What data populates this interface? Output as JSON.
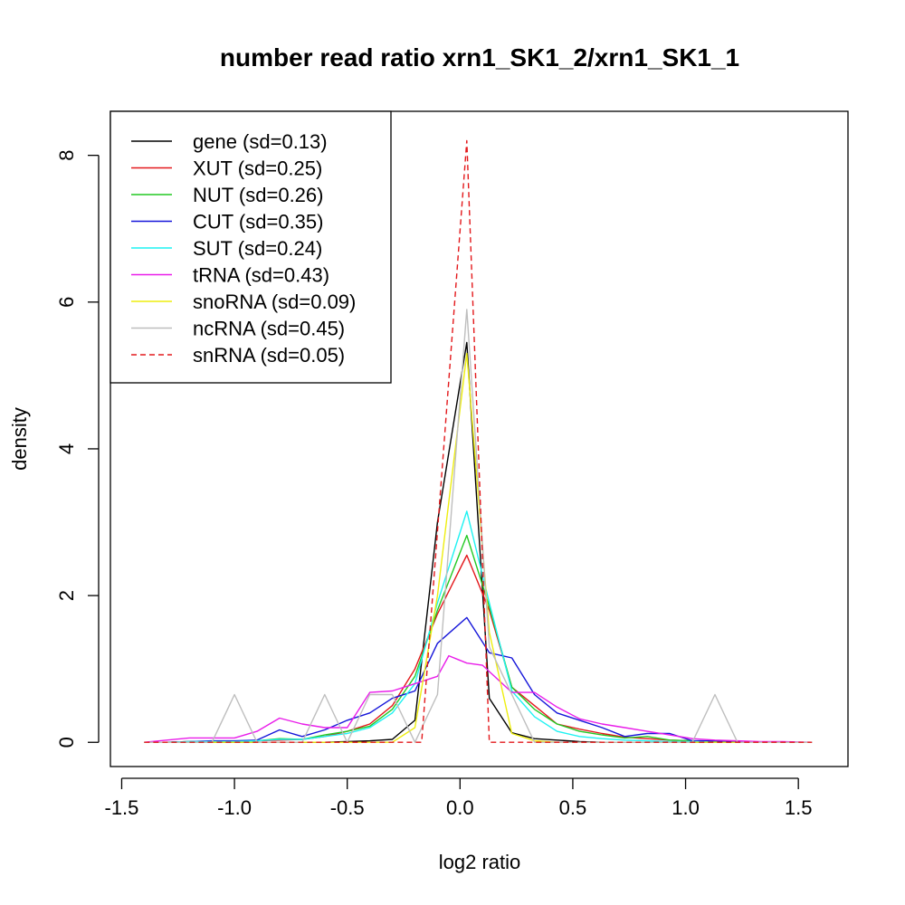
{
  "chart_data": {
    "type": "line",
    "title": "number read ratio xrn1_SK1_2/xrn1_SK1_1",
    "xlabel": "log2 ratio",
    "ylabel": "density",
    "xlim": [
      -1.55,
      1.72
    ],
    "ylim": [
      -0.33,
      8.6
    ],
    "xticks": [
      -1.5,
      -1.0,
      -0.5,
      0.0,
      0.5,
      1.0,
      1.5
    ],
    "xtick_labels": [
      "-1.5",
      "-1.0",
      "-0.5",
      "0.0",
      "0.5",
      "1.0",
      "1.5"
    ],
    "yticks": [
      0,
      2,
      4,
      6,
      8
    ],
    "ytick_labels": [
      "0",
      "2",
      "4",
      "6",
      "8"
    ],
    "grid": false,
    "legend_position": "top-left",
    "series": [
      {
        "name": "gene (sd=0.13)",
        "color": "#000000",
        "dash": "solid",
        "x": [
          -1.4,
          -1.3,
          -1.2,
          -1.1,
          -1.0,
          -0.9,
          -0.8,
          -0.7,
          -0.6,
          -0.5,
          -0.4,
          -0.3,
          -0.2,
          -0.1,
          0.03,
          0.13,
          0.23,
          0.33,
          0.43,
          0.53,
          0.63,
          0.73,
          0.83,
          0.93,
          1.03,
          1.13,
          1.23,
          1.33,
          1.43,
          1.56
        ],
        "y": [
          0,
          0,
          0,
          0,
          0,
          0,
          0,
          0,
          0,
          0.01,
          0.02,
          0.04,
          0.3,
          3.0,
          5.45,
          0.6,
          0.13,
          0.05,
          0.03,
          0.01,
          0,
          0,
          0,
          0,
          0,
          0,
          0,
          0,
          0,
          0
        ]
      },
      {
        "name": "XUT (sd=0.25)",
        "color": "#e3181b",
        "dash": "solid",
        "x": [
          -1.4,
          -1.3,
          -1.2,
          -1.1,
          -1.0,
          -0.9,
          -0.8,
          -0.7,
          -0.6,
          -0.5,
          -0.4,
          -0.3,
          -0.2,
          -0.1,
          0.03,
          0.13,
          0.23,
          0.33,
          0.43,
          0.53,
          0.63,
          0.73,
          0.83,
          0.93,
          1.03,
          1.13,
          1.23,
          1.33,
          1.43,
          1.56
        ],
        "y": [
          0,
          0,
          0.01,
          0.01,
          0.01,
          0.02,
          0.03,
          0.04,
          0.08,
          0.15,
          0.25,
          0.5,
          1.0,
          1.75,
          2.55,
          1.8,
          0.75,
          0.5,
          0.25,
          0.18,
          0.12,
          0.07,
          0.05,
          0.03,
          0.02,
          0.01,
          0.01,
          0,
          0,
          0
        ]
      },
      {
        "name": "NUT (sd=0.26)",
        "color": "#22c922",
        "dash": "solid",
        "x": [
          -1.4,
          -1.3,
          -1.2,
          -1.1,
          -1.0,
          -0.9,
          -0.8,
          -0.7,
          -0.6,
          -0.5,
          -0.4,
          -0.3,
          -0.2,
          -0.1,
          0.03,
          0.13,
          0.23,
          0.33,
          0.43,
          0.53,
          0.63,
          0.73,
          0.83,
          0.93,
          1.03,
          1.13,
          1.23,
          1.33,
          1.43,
          1.56
        ],
        "y": [
          0,
          0,
          0.01,
          0.01,
          0.01,
          0.02,
          0.05,
          0.04,
          0.1,
          0.15,
          0.22,
          0.45,
          0.9,
          1.8,
          2.82,
          1.85,
          0.75,
          0.45,
          0.25,
          0.15,
          0.1,
          0.06,
          0.08,
          0.03,
          0.02,
          0.01,
          0.01,
          0,
          0,
          0
        ]
      },
      {
        "name": "CUT (sd=0.35)",
        "color": "#1515d9",
        "dash": "solid",
        "x": [
          -1.4,
          -1.3,
          -1.2,
          -1.1,
          -1.0,
          -0.9,
          -0.8,
          -0.7,
          -0.6,
          -0.5,
          -0.4,
          -0.3,
          -0.2,
          -0.1,
          0.03,
          0.13,
          0.23,
          0.33,
          0.43,
          0.53,
          0.63,
          0.73,
          0.83,
          0.93,
          1.03,
          1.13,
          1.23,
          1.33,
          1.43,
          1.56
        ],
        "y": [
          0,
          0,
          0.01,
          0.02,
          0.02,
          0.03,
          0.17,
          0.08,
          0.17,
          0.3,
          0.4,
          0.6,
          0.7,
          1.35,
          1.7,
          1.22,
          1.15,
          0.65,
          0.4,
          0.3,
          0.2,
          0.08,
          0.12,
          0.12,
          0.02,
          0.02,
          0.01,
          0,
          0,
          0
        ]
      },
      {
        "name": "SUT (sd=0.24)",
        "color": "#1ef2f2",
        "dash": "solid",
        "x": [
          -1.4,
          -1.3,
          -1.2,
          -1.1,
          -1.0,
          -0.9,
          -0.8,
          -0.7,
          -0.6,
          -0.5,
          -0.4,
          -0.3,
          -0.2,
          -0.1,
          0.03,
          0.13,
          0.23,
          0.33,
          0.43,
          0.53,
          0.63,
          0.73,
          0.83,
          0.93,
          1.03,
          1.13,
          1.23,
          1.33,
          1.43,
          1.56
        ],
        "y": [
          0,
          0,
          0.01,
          0.01,
          0.01,
          0.02,
          0.04,
          0.04,
          0.08,
          0.12,
          0.2,
          0.4,
          0.8,
          1.9,
          3.15,
          1.9,
          0.7,
          0.35,
          0.15,
          0.08,
          0.05,
          0.03,
          0.02,
          0.01,
          0.01,
          0,
          0,
          0,
          0,
          0
        ]
      },
      {
        "name": "tRNA (sd=0.43)",
        "color": "#e91ce9",
        "dash": "solid",
        "x": [
          -1.4,
          -1.3,
          -1.2,
          -1.1,
          -1.0,
          -0.9,
          -0.8,
          -0.7,
          -0.6,
          -0.5,
          -0.4,
          -0.3,
          -0.2,
          -0.1,
          -0.05,
          0.03,
          0.1,
          0.23,
          0.33,
          0.43,
          0.53,
          0.63,
          0.73,
          0.83,
          0.93,
          1.03,
          1.13,
          1.23,
          1.33,
          1.43,
          1.56
        ],
        "y": [
          0,
          0.03,
          0.06,
          0.06,
          0.06,
          0.15,
          0.33,
          0.25,
          0.2,
          0.2,
          0.68,
          0.7,
          0.8,
          0.9,
          1.18,
          1.08,
          1.05,
          0.68,
          0.68,
          0.48,
          0.32,
          0.25,
          0.2,
          0.15,
          0.1,
          0.05,
          0.03,
          0.02,
          0.01,
          0.01,
          0
        ]
      },
      {
        "name": "snoRNA (sd=0.09)",
        "color": "#eeee0f",
        "dash": "solid",
        "x": [
          -1.4,
          -1.3,
          -1.2,
          -1.1,
          -1.0,
          -0.9,
          -0.8,
          -0.7,
          -0.6,
          -0.5,
          -0.4,
          -0.3,
          -0.2,
          -0.1,
          0.03,
          0.13,
          0.23,
          0.33,
          0.43,
          0.53,
          0.63,
          0.73,
          0.83,
          0.93,
          1.03,
          1.13,
          1.23,
          1.33,
          1.43,
          1.56
        ],
        "y": [
          0,
          0,
          0,
          0,
          0,
          0,
          0,
          0,
          0,
          0,
          0,
          0,
          0.2,
          2.0,
          5.3,
          1.5,
          0.12,
          0.02,
          0,
          0,
          0,
          0,
          0,
          0,
          0,
          0,
          0,
          0,
          0,
          0
        ]
      },
      {
        "name": "ncRNA (sd=0.45)",
        "color": "#bebebe",
        "dash": "solid",
        "x": [
          -1.4,
          -1.3,
          -1.2,
          -1.1,
          -1.0,
          -0.9,
          -0.8,
          -0.7,
          -0.6,
          -0.5,
          -0.4,
          -0.3,
          -0.2,
          -0.1,
          0.03,
          0.13,
          0.23,
          0.33,
          0.43,
          0.53,
          0.63,
          0.73,
          0.83,
          0.93,
          1.03,
          1.13,
          1.23,
          1.33,
          1.43,
          1.56
        ],
        "y": [
          0,
          0,
          0,
          0,
          0.65,
          0,
          0,
          0,
          0.65,
          0,
          0.65,
          0.65,
          0,
          0.65,
          5.9,
          1.3,
          0.65,
          0,
          0,
          0,
          0,
          0,
          0,
          0,
          0,
          0.65,
          0,
          0,
          0,
          0
        ]
      },
      {
        "name": "snRNA (sd=0.05)",
        "color": "#e3181b",
        "dash": "dashed",
        "x": [
          -1.4,
          -1.3,
          -1.2,
          -1.1,
          -1.0,
          -0.9,
          -0.8,
          -0.7,
          -0.6,
          -0.5,
          -0.4,
          -0.3,
          -0.2,
          -0.17,
          0.03,
          0.13,
          0.23,
          0.33,
          0.43,
          0.53,
          0.63,
          0.73,
          0.83,
          0.93,
          1.03,
          1.13,
          1.23,
          1.33,
          1.43,
          1.56
        ],
        "y": [
          0,
          0,
          0,
          0,
          0,
          0,
          0,
          0,
          0,
          0,
          0,
          0,
          0,
          0,
          8.2,
          0,
          0,
          0,
          0,
          0,
          0,
          0,
          0,
          0,
          0,
          0,
          0,
          0,
          0,
          0
        ]
      }
    ]
  }
}
